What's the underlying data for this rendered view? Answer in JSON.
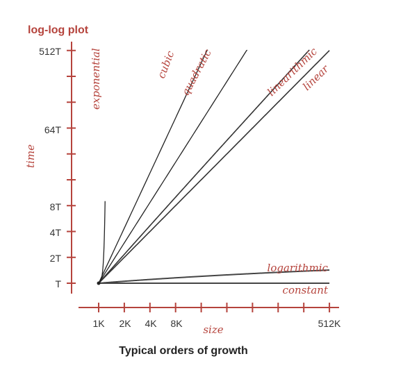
{
  "colors": {
    "accent": "#b5433c",
    "line": "#000000",
    "line_dark": "#333333",
    "text": "#333333"
  },
  "chart_data": {
    "type": "line",
    "title": "log-log plot",
    "caption": "Typical orders of growth",
    "xlabel": "size",
    "ylabel": "time",
    "x_scale": "log2",
    "y_scale": "log2",
    "x_ticks": [
      "1K",
      "2K",
      "4K",
      "8K",
      "",
      "",
      "",
      "",
      "",
      "512K"
    ],
    "x_tick_labels": [
      "1K",
      "2K",
      "4K",
      "8K",
      "512K"
    ],
    "y_tick_labels": [
      "T",
      "2T",
      "4T",
      "8T",
      "64T",
      "512T"
    ],
    "grid": false,
    "legend": "inline labels at line ends",
    "series": [
      {
        "name": "exponential",
        "shape": "exponential"
      },
      {
        "name": "cubic",
        "exponent": 3
      },
      {
        "name": "quadratic",
        "exponent": 2
      },
      {
        "name": "linearithmic",
        "exponent": 1,
        "log_factor": true
      },
      {
        "name": "linear",
        "exponent": 1
      },
      {
        "name": "logarithmic",
        "shape": "logarithmic"
      },
      {
        "name": "constant",
        "exponent": 0
      }
    ]
  }
}
